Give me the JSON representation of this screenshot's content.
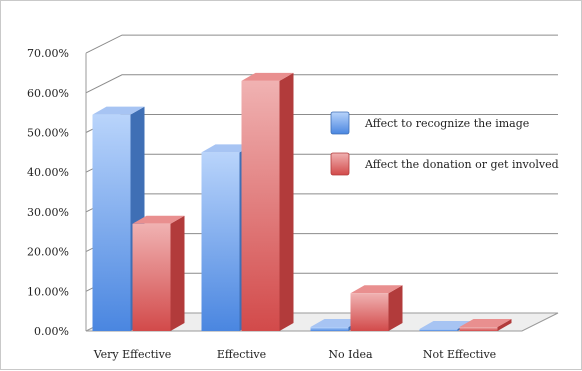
{
  "chart_data": {
    "type": "bar",
    "title": "",
    "xlabel": "",
    "ylabel": "",
    "categories": [
      "Very Effective",
      "Effective",
      "No Idea",
      "Not Effective"
    ],
    "series": [
      {
        "name": "Affect to recognize the image",
        "values": [
          54.5,
          45.0,
          1.0,
          0.5
        ],
        "color": "#6d9eeb"
      },
      {
        "name": "Affect the donation or get involved",
        "values": [
          27.0,
          63.0,
          9.5,
          1.0
        ],
        "color": "#e06b6b"
      }
    ],
    "yticks": [
      "0.00%",
      "10.00%",
      "20.00%",
      "30.00%",
      "40.00%",
      "50.00%",
      "60.00%",
      "70.00%"
    ],
    "ylim": [
      0,
      70
    ],
    "grid": true,
    "legend_position": "right"
  }
}
